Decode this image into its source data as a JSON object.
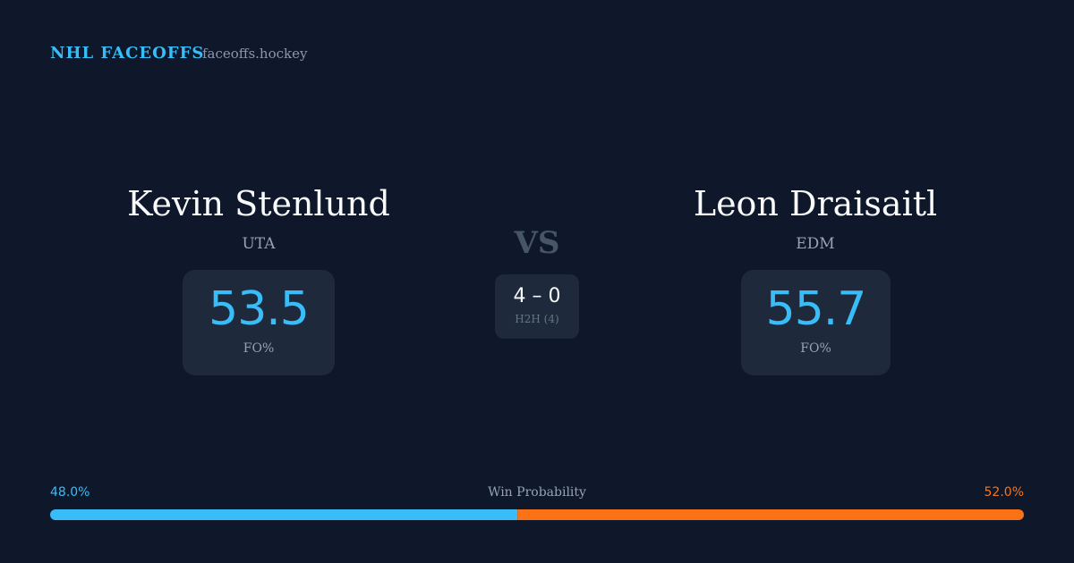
{
  "header": {
    "brand": "NHL FACEOFFS",
    "site": "faceoffs.hockey"
  },
  "players": [
    {
      "name": "Kevin Stenlund",
      "team": "UTA",
      "fo_pct": 53.5,
      "fo_label": "FO%"
    },
    {
      "name": "Leon Draisaitl",
      "team": "EDM",
      "fo_pct": 55.7,
      "fo_label": "FO%"
    }
  ],
  "versus": "VS",
  "head_to_head": {
    "score": "4 – 0",
    "label": "H2H (4)"
  },
  "win_probability": {
    "label": "Win Probability",
    "values": [
      48.0,
      52.0
    ],
    "value_labels": [
      "48.0%",
      "52.0%"
    ],
    "colors": [
      "#38bdf8",
      "#f97316"
    ]
  }
}
